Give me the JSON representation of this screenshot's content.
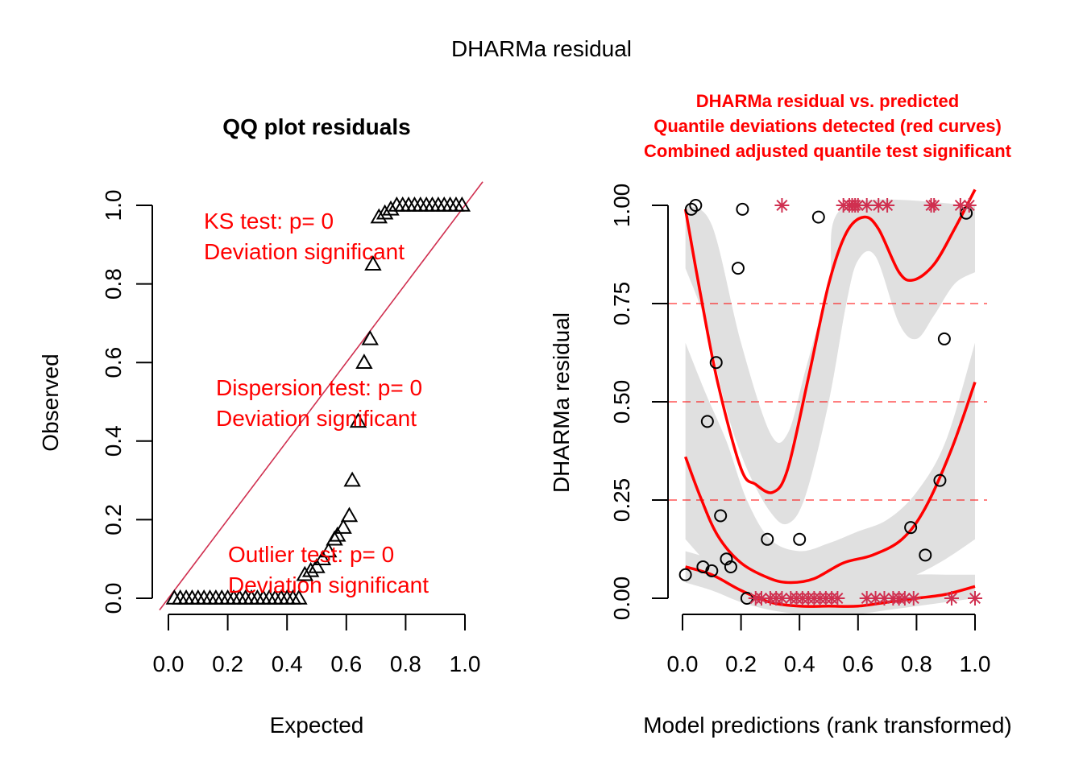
{
  "page": {
    "outer_title": "DHARMa residual"
  },
  "chart_data": [
    {
      "type": "scatter",
      "title": "QQ plot residuals",
      "xlabel": "Expected",
      "ylabel": "Observed",
      "xlim": [
        0.0,
        1.0
      ],
      "ylim": [
        0.0,
        1.0
      ],
      "xticks": [
        "0.0",
        "0.2",
        "0.4",
        "0.6",
        "0.8",
        "1.0"
      ],
      "yticks": [
        "0.0",
        "0.2",
        "0.4",
        "0.6",
        "0.8",
        "1.0"
      ],
      "grid": false,
      "marker": "triangle",
      "reference_line": {
        "slope": 1,
        "intercept": 0,
        "color": "#d03050"
      },
      "annotations": [
        {
          "line1": "KS test: p= 0",
          "line2": "Deviation  significant",
          "color": "#ff0000",
          "position": "top-left"
        },
        {
          "line1": "Dispersion test: p= 0",
          "line2": "Deviation  significant",
          "color": "#ff0000",
          "position": "middle"
        },
        {
          "line1": "Outlier test: p= 0",
          "line2": "Deviation  significant",
          "color": "#ff0000",
          "position": "bottom"
        }
      ],
      "series": [
        {
          "name": "residual quantiles",
          "points": [
            [
              0.02,
              0.0
            ],
            [
              0.04,
              0.0
            ],
            [
              0.06,
              0.0
            ],
            [
              0.08,
              0.0
            ],
            [
              0.1,
              0.0
            ],
            [
              0.12,
              0.0
            ],
            [
              0.14,
              0.0
            ],
            [
              0.16,
              0.0
            ],
            [
              0.18,
              0.0
            ],
            [
              0.2,
              0.0
            ],
            [
              0.22,
              0.0
            ],
            [
              0.24,
              0.0
            ],
            [
              0.26,
              0.0
            ],
            [
              0.28,
              0.0
            ],
            [
              0.3,
              0.0
            ],
            [
              0.32,
              0.0
            ],
            [
              0.34,
              0.0
            ],
            [
              0.36,
              0.0
            ],
            [
              0.38,
              0.0
            ],
            [
              0.4,
              0.0
            ],
            [
              0.42,
              0.0
            ],
            [
              0.44,
              0.0
            ],
            [
              0.46,
              0.06
            ],
            [
              0.48,
              0.07
            ],
            [
              0.5,
              0.08
            ],
            [
              0.52,
              0.1
            ],
            [
              0.54,
              0.12
            ],
            [
              0.56,
              0.15
            ],
            [
              0.57,
              0.16
            ],
            [
              0.59,
              0.18
            ],
            [
              0.61,
              0.21
            ],
            [
              0.62,
              0.3
            ],
            [
              0.64,
              0.45
            ],
            [
              0.66,
              0.6
            ],
            [
              0.68,
              0.66
            ],
            [
              0.69,
              0.85
            ],
            [
              0.71,
              0.97
            ],
            [
              0.73,
              0.98
            ],
            [
              0.75,
              0.99
            ],
            [
              0.77,
              1.0
            ],
            [
              0.79,
              1.0
            ],
            [
              0.81,
              1.0
            ],
            [
              0.83,
              1.0
            ],
            [
              0.85,
              1.0
            ],
            [
              0.87,
              1.0
            ],
            [
              0.89,
              1.0
            ],
            [
              0.91,
              1.0
            ],
            [
              0.93,
              1.0
            ],
            [
              0.95,
              1.0
            ],
            [
              0.97,
              1.0
            ],
            [
              0.99,
              1.0
            ]
          ]
        }
      ]
    },
    {
      "type": "scatter",
      "title_lines": [
        "DHARMa residual vs. predicted",
        "Quantile deviations detected (red curves)",
        "Combined adjusted quantile test significant"
      ],
      "title_color": "#ff0000",
      "xlabel": "Model predictions (rank transformed)",
      "ylabel": "DHARMa residual",
      "xlim": [
        0.0,
        1.0
      ],
      "ylim": [
        0.0,
        1.0
      ],
      "xticks": [
        "0.0",
        "0.2",
        "0.4",
        "0.6",
        "0.8",
        "1.0"
      ],
      "yticks": [
        "0.00",
        "0.25",
        "0.50",
        "0.75",
        "1.00"
      ],
      "grid": false,
      "reference_lines": [
        {
          "y": 0.25,
          "style": "dashed",
          "color": "#ff0000"
        },
        {
          "y": 0.5,
          "style": "dashed",
          "color": "#ff0000"
        },
        {
          "y": 0.75,
          "style": "dashed",
          "color": "#ff0000"
        }
      ],
      "series": [
        {
          "name": "residuals",
          "marker": "circle",
          "points": [
            [
              0.01,
              0.06
            ],
            [
              0.03,
              0.99
            ],
            [
              0.045,
              1.0
            ],
            [
              0.07,
              0.08
            ],
            [
              0.085,
              0.45
            ],
            [
              0.1,
              0.07
            ],
            [
              0.115,
              0.6
            ],
            [
              0.13,
              0.21
            ],
            [
              0.15,
              0.1
            ],
            [
              0.165,
              0.08
            ],
            [
              0.19,
              0.84
            ],
            [
              0.205,
              0.99
            ],
            [
              0.22,
              0.0
            ],
            [
              0.29,
              0.15
            ],
            [
              0.4,
              0.15
            ],
            [
              0.465,
              0.97
            ],
            [
              0.78,
              0.18
            ],
            [
              0.83,
              0.11
            ],
            [
              0.88,
              0.3
            ],
            [
              0.895,
              0.66
            ],
            [
              0.97,
              0.98
            ]
          ]
        },
        {
          "name": "outliers",
          "marker": "asterisk",
          "color": "#d03050",
          "points": [
            [
              0.25,
              0.0
            ],
            [
              0.27,
              0.0
            ],
            [
              0.3,
              0.0
            ],
            [
              0.32,
              0.0
            ],
            [
              0.34,
              0.0
            ],
            [
              0.37,
              0.0
            ],
            [
              0.39,
              0.0
            ],
            [
              0.41,
              0.0
            ],
            [
              0.43,
              0.0
            ],
            [
              0.45,
              0.0
            ],
            [
              0.47,
              0.0
            ],
            [
              0.49,
              0.0
            ],
            [
              0.51,
              0.0
            ],
            [
              0.53,
              0.0
            ],
            [
              0.63,
              0.0
            ],
            [
              0.66,
              0.0
            ],
            [
              0.69,
              0.0
            ],
            [
              0.72,
              0.0
            ],
            [
              0.74,
              0.0
            ],
            [
              0.76,
              0.0
            ],
            [
              0.79,
              0.0
            ],
            [
              0.92,
              0.0
            ],
            [
              1.0,
              0.0
            ],
            [
              0.34,
              1.0
            ],
            [
              0.55,
              1.0
            ],
            [
              0.57,
              1.0
            ],
            [
              0.58,
              1.0
            ],
            [
              0.59,
              1.0
            ],
            [
              0.6,
              1.0
            ],
            [
              0.63,
              1.0
            ],
            [
              0.67,
              1.0
            ],
            [
              0.7,
              1.0
            ],
            [
              0.85,
              1.0
            ],
            [
              0.86,
              1.0
            ],
            [
              0.95,
              1.0
            ],
            [
              0.98,
              1.0
            ]
          ]
        },
        {
          "name": "quantile 0.75 spline",
          "type": "line",
          "color": "#ff0000",
          "points": [
            [
              0.01,
              0.99
            ],
            [
              0.06,
              0.78
            ],
            [
              0.12,
              0.55
            ],
            [
              0.2,
              0.33
            ],
            [
              0.25,
              0.29
            ],
            [
              0.31,
              0.27
            ],
            [
              0.36,
              0.33
            ],
            [
              0.43,
              0.56
            ],
            [
              0.5,
              0.8
            ],
            [
              0.56,
              0.93
            ],
            [
              0.62,
              0.97
            ],
            [
              0.67,
              0.94
            ],
            [
              0.74,
              0.83
            ],
            [
              0.79,
              0.81
            ],
            [
              0.86,
              0.85
            ],
            [
              0.93,
              0.94
            ],
            [
              1.0,
              1.04
            ]
          ]
        },
        {
          "name": "quantile 0.5 spline",
          "type": "line",
          "color": "#ff0000",
          "points": [
            [
              0.01,
              0.36
            ],
            [
              0.06,
              0.26
            ],
            [
              0.12,
              0.16
            ],
            [
              0.2,
              0.09
            ],
            [
              0.3,
              0.05
            ],
            [
              0.37,
              0.04
            ],
            [
              0.45,
              0.05
            ],
            [
              0.55,
              0.09
            ],
            [
              0.65,
              0.11
            ],
            [
              0.75,
              0.15
            ],
            [
              0.83,
              0.23
            ],
            [
              0.92,
              0.38
            ],
            [
              1.0,
              0.55
            ]
          ]
        },
        {
          "name": "quantile 0.25 spline",
          "type": "line",
          "color": "#ff0000",
          "points": [
            [
              0.01,
              0.08
            ],
            [
              0.1,
              0.06
            ],
            [
              0.2,
              0.02
            ],
            [
              0.3,
              -0.01
            ],
            [
              0.4,
              -0.02
            ],
            [
              0.5,
              -0.02
            ],
            [
              0.6,
              -0.02
            ],
            [
              0.7,
              -0.01
            ],
            [
              0.8,
              0.0
            ],
            [
              0.9,
              0.01
            ],
            [
              1.0,
              0.03
            ]
          ]
        },
        {
          "name": "confidence bands",
          "type": "area",
          "color": "#e0e0e0",
          "bands": [
            {
              "upper": [
                [
                  0.01,
                  1.0
                ],
                [
                  0.1,
                  0.95
                ],
                [
                  0.2,
                  0.65
                ],
                [
                  0.3,
                  0.42
                ],
                [
                  0.36,
                  0.42
                ],
                [
                  0.42,
                  0.58
                ],
                [
                  0.5,
                  0.8
                ],
                [
                  0.56,
                  1.0
                ],
                [
                  1.0,
                  1.0
                ]
              ],
              "lower": [
                [
                  0.01,
                  0.84
                ],
                [
                  0.08,
                  0.7
                ],
                [
                  0.15,
                  0.48
                ],
                [
                  0.22,
                  0.33
                ],
                [
                  0.3,
                  0.22
                ],
                [
                  0.36,
                  0.19
                ],
                [
                  0.42,
                  0.26
                ],
                [
                  0.5,
                  0.5
                ],
                [
                  0.56,
                  0.75
                ],
                [
                  0.6,
                  0.86
                ],
                [
                  0.66,
                  0.87
                ],
                [
                  0.74,
                  0.7
                ],
                [
                  0.8,
                  0.66
                ],
                [
                  0.86,
                  0.72
                ],
                [
                  0.93,
                  0.8
                ],
                [
                  1.0,
                  0.83
                ]
              ]
            },
            {
              "upper": [
                [
                  0.01,
                  0.65
                ],
                [
                  0.08,
                  0.52
                ],
                [
                  0.15,
                  0.4
                ],
                [
                  0.22,
                  0.25
                ],
                [
                  0.3,
                  0.15
                ],
                [
                  0.4,
                  0.12
                ],
                [
                  0.5,
                  0.14
                ],
                [
                  0.6,
                  0.17
                ],
                [
                  0.7,
                  0.2
                ],
                [
                  0.8,
                  0.27
                ],
                [
                  0.9,
                  0.4
                ],
                [
                  1.0,
                  0.65
                ]
              ],
              "lower": [
                [
                  0.01,
                  0.15
                ],
                [
                  0.1,
                  0.08
                ],
                [
                  0.2,
                  0.04
                ],
                [
                  0.3,
                  0.0
                ],
                [
                  0.4,
                  -0.02
                ],
                [
                  0.5,
                  -0.01
                ],
                [
                  0.6,
                  0.02
                ],
                [
                  0.7,
                  0.03
                ],
                [
                  0.8,
                  0.06
                ],
                [
                  0.9,
                  0.1
                ],
                [
                  1.0,
                  0.15
                ]
              ]
            },
            {
              "upper": [
                [
                  0.01,
                  0.12
                ],
                [
                  0.1,
                  0.1
                ],
                [
                  0.2,
                  0.07
                ],
                [
                  0.3,
                  0.04
                ],
                [
                  0.4,
                  0.03
                ],
                [
                  0.5,
                  0.03
                ],
                [
                  0.6,
                  0.04
                ],
                [
                  0.7,
                  0.05
                ],
                [
                  0.8,
                  0.06
                ],
                [
                  0.9,
                  0.06
                ],
                [
                  1.0,
                  0.06
                ]
              ],
              "lower": [
                [
                  0.01,
                  0.04
                ],
                [
                  0.1,
                  0.02
                ],
                [
                  0.2,
                  -0.01
                ],
                [
                  0.3,
                  -0.03
                ],
                [
                  0.4,
                  -0.04
                ],
                [
                  0.5,
                  -0.04
                ],
                [
                  0.6,
                  -0.04
                ],
                [
                  0.7,
                  -0.03
                ],
                [
                  0.8,
                  -0.02
                ],
                [
                  0.9,
                  -0.01
                ],
                [
                  1.0,
                  0.0
                ]
              ]
            }
          ]
        }
      ]
    }
  ]
}
